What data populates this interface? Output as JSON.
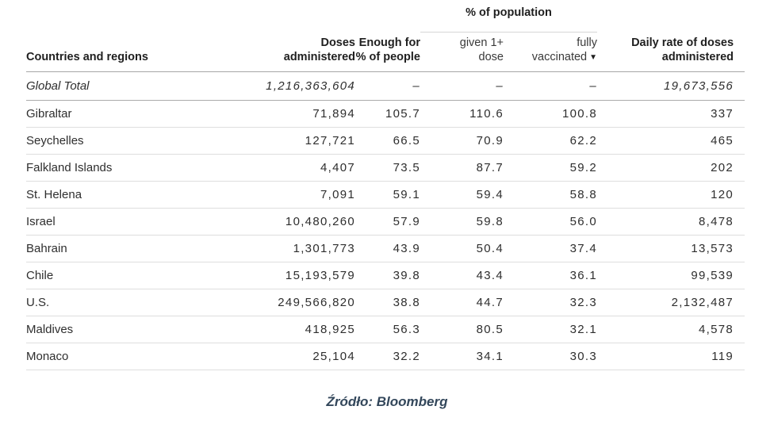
{
  "chart_data": {
    "type": "table",
    "group_header": "% of population",
    "sort_indicator": "▼",
    "sorted_by": "fully vaccinated",
    "sort_direction": "descending",
    "columns": [
      {
        "id": "country",
        "label": "Countries and regions",
        "bold": true,
        "align": "left"
      },
      {
        "id": "doses",
        "label": "Doses\nadministered",
        "bold": true,
        "align": "right"
      },
      {
        "id": "enough",
        "label": "Enough for\n% of people",
        "bold": true,
        "align": "right"
      },
      {
        "id": "given1",
        "label": "given 1+\ndose",
        "bold": false,
        "align": "right",
        "group": "% of population"
      },
      {
        "id": "fully",
        "label": "fully\nvaccinated",
        "bold": false,
        "align": "right",
        "group": "% of population",
        "sorted": "descending"
      },
      {
        "id": "daily",
        "label": "Daily rate of doses\nadministered",
        "bold": true,
        "align": "right"
      }
    ],
    "total_row": {
      "country": "Global Total",
      "doses": "1,216,363,604",
      "enough": "–",
      "given1": "–",
      "fully": "–",
      "daily": "19,673,556"
    },
    "rows": [
      {
        "country": "Gibraltar",
        "doses": "71,894",
        "enough": "105.7",
        "given1": "110.6",
        "fully": "100.8",
        "daily": "337"
      },
      {
        "country": "Seychelles",
        "doses": "127,721",
        "enough": "66.5",
        "given1": "70.9",
        "fully": "62.2",
        "daily": "465"
      },
      {
        "country": "Falkland Islands",
        "doses": "4,407",
        "enough": "73.5",
        "given1": "87.7",
        "fully": "59.2",
        "daily": "202"
      },
      {
        "country": "St. Helena",
        "doses": "7,091",
        "enough": "59.1",
        "given1": "59.4",
        "fully": "58.8",
        "daily": "120"
      },
      {
        "country": "Israel",
        "doses": "10,480,260",
        "enough": "57.9",
        "given1": "59.8",
        "fully": "56.0",
        "daily": "8,478"
      },
      {
        "country": "Bahrain",
        "doses": "1,301,773",
        "enough": "43.9",
        "given1": "50.4",
        "fully": "37.4",
        "daily": "13,573"
      },
      {
        "country": "Chile",
        "doses": "15,193,579",
        "enough": "39.8",
        "given1": "43.4",
        "fully": "36.1",
        "daily": "99,539"
      },
      {
        "country": "U.S.",
        "doses": "249,566,820",
        "enough": "38.8",
        "given1": "44.7",
        "fully": "32.3",
        "daily": "2,132,487"
      },
      {
        "country": "Maldives",
        "doses": "418,925",
        "enough": "56.3",
        "given1": "80.5",
        "fully": "32.1",
        "daily": "4,578"
      },
      {
        "country": "Monaco",
        "doses": "25,104",
        "enough": "32.2",
        "given1": "34.1",
        "fully": "30.3",
        "daily": "119"
      }
    ],
    "source": "Źródło: Bloomberg"
  },
  "colors": {
    "text": "#2e2e2e",
    "header_text": "#1f1f1f",
    "strong_border": "#a6a6a6",
    "light_border": "#dedede",
    "source_text": "#33475b"
  }
}
